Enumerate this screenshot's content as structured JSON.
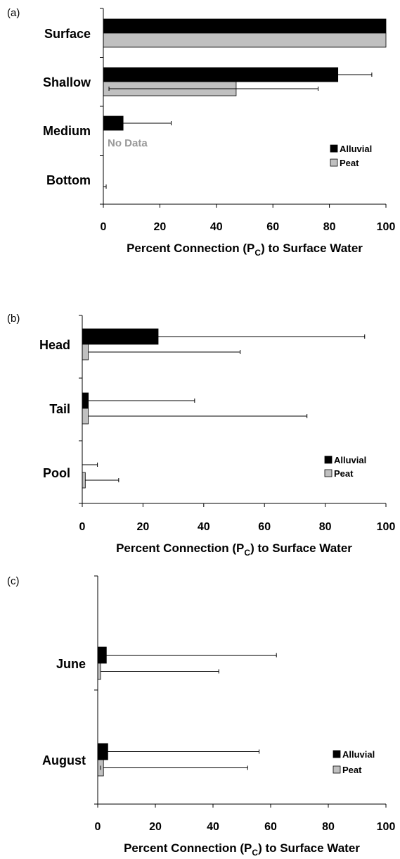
{
  "colors": {
    "alluvial": "#000000",
    "peat": "#c0c0c0",
    "axis": "#000000",
    "note": "#999999"
  },
  "chart_data": [
    {
      "panel_label": "(a)",
      "type": "bar",
      "orientation": "horizontal",
      "categories": [
        "Surface",
        "Shallow",
        "Medium",
        "Bottom"
      ],
      "series": [
        {
          "name": "Alluvial",
          "values": [
            100,
            83,
            7,
            0
          ],
          "error": [
            0,
            12,
            17,
            0
          ]
        },
        {
          "name": "Peat",
          "values": [
            100,
            47,
            null,
            0
          ],
          "error": [
            0,
            29,
            null,
            1
          ]
        }
      ],
      "xlim": [
        0,
        100
      ],
      "xticks": [
        "0",
        "20",
        "40",
        "60",
        "80",
        "100"
      ],
      "xlabel_main": "Percent Connection (P",
      "xlabel_sub": "C",
      "xlabel_tail": ") to Surface Water",
      "annotation": "No Data",
      "legend_position": "right"
    },
    {
      "panel_label": "(b)",
      "type": "bar",
      "orientation": "horizontal",
      "categories": [
        "Head",
        "Tail",
        "Pool"
      ],
      "series": [
        {
          "name": "Alluvial",
          "values": [
            25,
            2,
            0
          ],
          "error": [
            68,
            35,
            5
          ]
        },
        {
          "name": "Peat",
          "values": [
            2,
            2,
            1
          ],
          "error": [
            50,
            72,
            11
          ]
        }
      ],
      "xlim": [
        0,
        100
      ],
      "xticks": [
        "0",
        "20",
        "40",
        "60",
        "80",
        "100"
      ],
      "xlabel_main": "Percent Connection (P",
      "xlabel_sub": "C",
      "xlabel_tail": ") to Surface Water",
      "legend_position": "right"
    },
    {
      "panel_label": "(c)",
      "type": "bar",
      "orientation": "horizontal",
      "categories": [
        "June",
        "August"
      ],
      "series": [
        {
          "name": "Alluvial",
          "values": [
            3,
            3.5
          ],
          "error": [
            59,
            52.5
          ]
        },
        {
          "name": "Peat",
          "values": [
            1,
            2
          ],
          "error": [
            41,
            50
          ]
        }
      ],
      "xlim": [
        0,
        100
      ],
      "xticks": [
        "0",
        "20",
        "40",
        "60",
        "80",
        "100"
      ],
      "xlabel_main": "Percent Connection (P",
      "xlabel_sub": "C",
      "xlabel_tail": ") to Surface Water",
      "legend_position": "right"
    }
  ]
}
